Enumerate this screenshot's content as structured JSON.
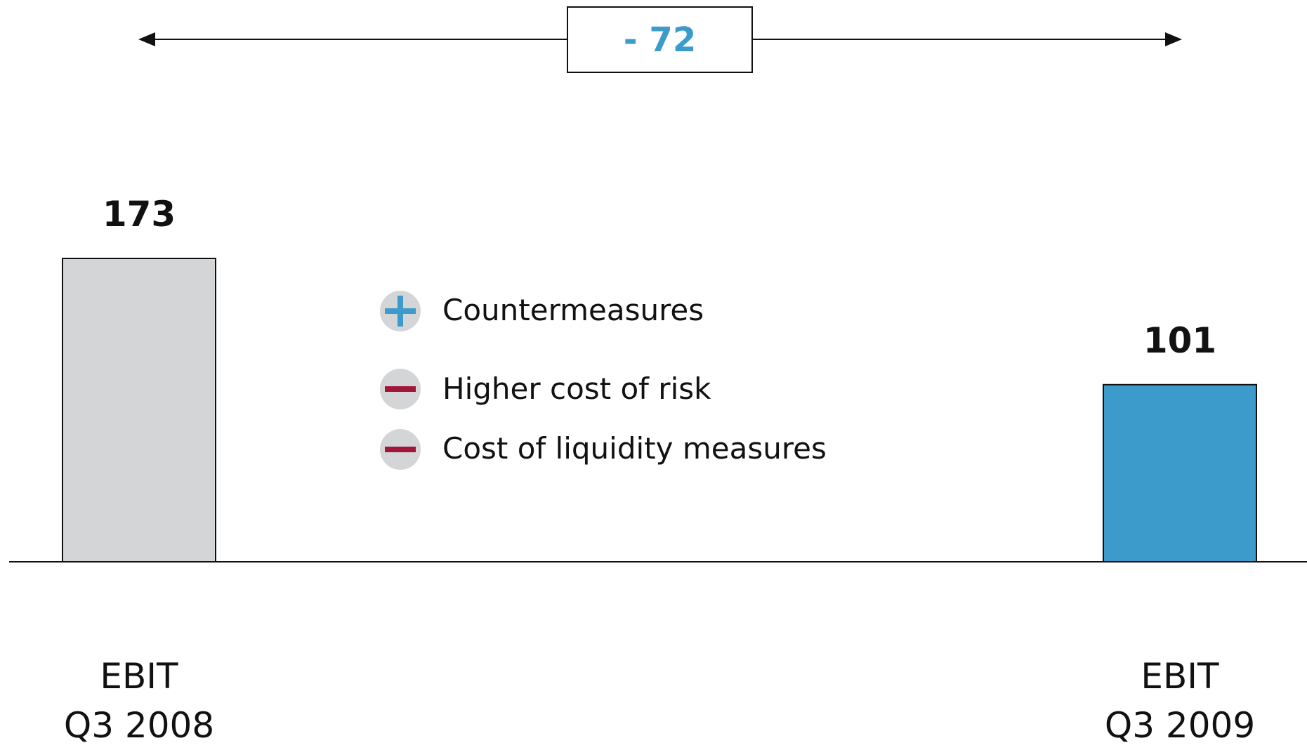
{
  "chart_data": {
    "type": "bar",
    "categories": [
      "EBIT\nQ3 2008",
      "EBIT\nQ3 2009"
    ],
    "values": [
      173,
      101
    ],
    "colors": [
      "#d4d5d7",
      "#3d9bcc"
    ],
    "annotation": "- 72",
    "factors": [
      "Countermeasures",
      "Higher cost of risk",
      "Cost of liquidity measures"
    ]
  }
}
